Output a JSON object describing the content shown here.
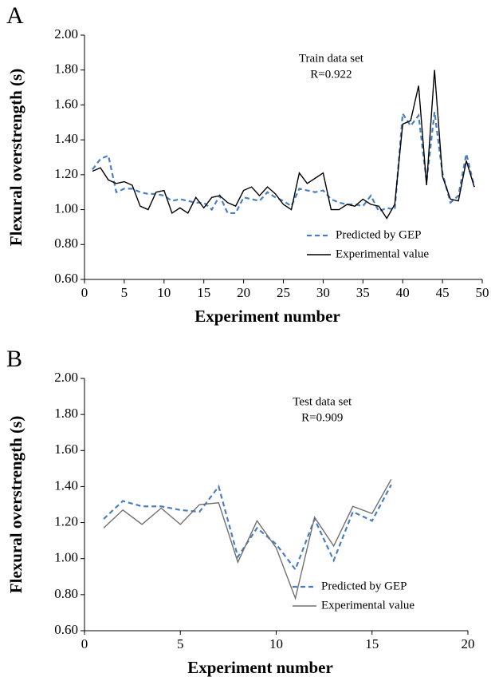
{
  "chart_data": [
    {
      "type": "line",
      "panel_label": "A",
      "xlabel": "Experiment number",
      "ylabel": "Flexural overstrength (s)",
      "annotations": [
        "Train data set",
        "R=0.922"
      ],
      "legend": "lower right",
      "x": [
        1,
        2,
        3,
        4,
        5,
        6,
        7,
        8,
        9,
        10,
        11,
        12,
        13,
        14,
        15,
        16,
        17,
        18,
        19,
        20,
        21,
        22,
        23,
        24,
        25,
        26,
        27,
        28,
        29,
        30,
        31,
        32,
        33,
        34,
        35,
        36,
        37,
        38,
        39,
        40,
        41,
        42,
        43,
        44,
        45,
        46,
        47,
        48,
        49
      ],
      "series": [
        {
          "name": "Predicted by GEP",
          "color": "#4a7ebf",
          "dashed": true,
          "values": [
            1.23,
            1.29,
            1.31,
            1.1,
            1.12,
            1.12,
            1.1,
            1.09,
            1.09,
            1.08,
            1.05,
            1.06,
            1.05,
            1.04,
            1.04,
            1.0,
            1.08,
            0.98,
            0.98,
            1.07,
            1.06,
            1.05,
            1.1,
            1.07,
            1.05,
            1.02,
            1.12,
            1.11,
            1.1,
            1.11,
            1.06,
            1.04,
            1.03,
            1.03,
            1.02,
            1.08,
            0.99,
            1.01,
            1.0,
            1.55,
            1.48,
            1.54,
            1.16,
            1.56,
            1.21,
            1.04,
            1.08,
            1.32,
            1.13
          ]
        },
        {
          "name": "Experimental value",
          "color": "#000000",
          "dashed": false,
          "values": [
            1.22,
            1.24,
            1.17,
            1.15,
            1.16,
            1.14,
            1.02,
            1.0,
            1.1,
            1.11,
            0.98,
            1.01,
            0.98,
            1.07,
            1.01,
            1.07,
            1.08,
            1.04,
            1.02,
            1.11,
            1.13,
            1.08,
            1.13,
            1.09,
            1.03,
            1.0,
            1.21,
            1.15,
            1.18,
            1.21,
            1.0,
            1.0,
            1.03,
            1.02,
            1.06,
            1.03,
            1.02,
            0.95,
            1.03,
            1.49,
            1.51,
            1.71,
            1.14,
            1.8,
            1.19,
            1.06,
            1.05,
            1.28,
            1.13
          ]
        }
      ],
      "xlim": [
        0,
        50
      ],
      "xticks": [
        0,
        5,
        10,
        15,
        20,
        25,
        30,
        35,
        40,
        45,
        50
      ],
      "ylim": [
        0.6,
        2.0
      ],
      "yticks": [
        {
          "value": 0.6,
          "label": "0.60"
        },
        {
          "value": 0.8,
          "label": "0.80"
        },
        {
          "value": 1.0,
          "label": "1.00"
        },
        {
          "value": 1.2,
          "label": "1.20"
        },
        {
          "value": 1.4,
          "label": "1.40"
        },
        {
          "value": 1.6,
          "label": "1.60"
        },
        {
          "value": 1.8,
          "label": "1.80"
        },
        {
          "value": 2.0,
          "label": "2.00"
        }
      ]
    },
    {
      "type": "line",
      "panel_label": "B",
      "xlabel": "Experiment number",
      "ylabel": "Flexural overstrength (s)",
      "annotations": [
        "Test data set",
        "R=0.909"
      ],
      "legend": "lower right",
      "x": [
        1,
        2,
        3,
        4,
        5,
        6,
        7,
        8,
        9,
        10,
        11,
        12,
        13,
        14,
        15,
        16
      ],
      "series": [
        {
          "name": "Predicted by GEP",
          "color": "#4a7ebf",
          "dashed": true,
          "values": [
            1.22,
            1.32,
            1.29,
            1.29,
            1.27,
            1.26,
            1.4,
            1.01,
            1.17,
            1.08,
            0.94,
            1.22,
            0.99,
            1.26,
            1.21,
            1.41
          ]
        },
        {
          "name": "Experimental value",
          "color": "#707070",
          "dashed": false,
          "values": [
            1.17,
            1.27,
            1.19,
            1.28,
            1.19,
            1.3,
            1.31,
            0.98,
            1.21,
            1.06,
            0.78,
            1.23,
            1.07,
            1.29,
            1.25,
            1.44
          ]
        }
      ],
      "xlim": [
        0,
        20
      ],
      "xticks": [
        0,
        5,
        10,
        15,
        20
      ],
      "ylim": [
        0.6,
        2.0
      ],
      "yticks": [
        {
          "value": 0.6,
          "label": "0.60"
        },
        {
          "value": 0.8,
          "label": "0.80"
        },
        {
          "value": 1.0,
          "label": "1.00"
        },
        {
          "value": 1.2,
          "label": "1.20"
        },
        {
          "value": 1.4,
          "label": "1.40"
        },
        {
          "value": 1.6,
          "label": "1.60"
        },
        {
          "value": 1.8,
          "label": "1.80"
        },
        {
          "value": 2.0,
          "label": "2.00"
        }
      ]
    }
  ]
}
